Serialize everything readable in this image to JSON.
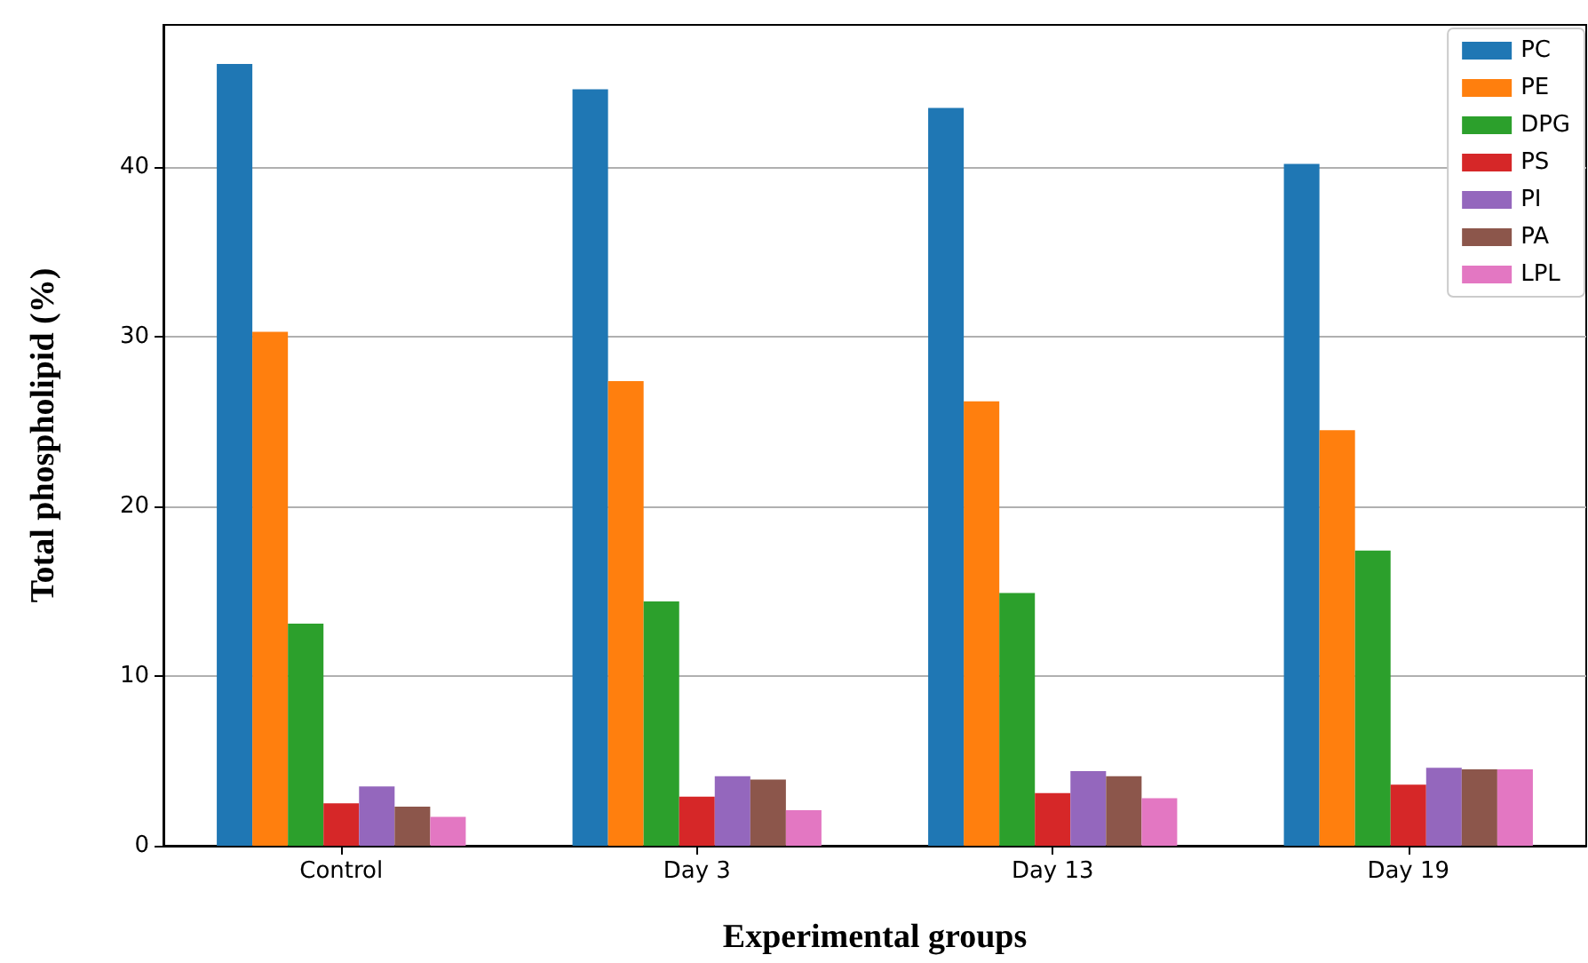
{
  "chart_data": {
    "type": "bar",
    "xlabel": "Experimental groups",
    "ylabel": "Total phospholipid (%)",
    "categories": [
      "Control",
      "Day 3",
      "Day 13",
      "Day 19"
    ],
    "series": [
      {
        "name": "PC",
        "color": "#1f77b4",
        "values": [
          46.1,
          44.6,
          43.5,
          40.2
        ]
      },
      {
        "name": "PE",
        "color": "#ff7f0e",
        "values": [
          30.3,
          27.4,
          26.2,
          24.5
        ]
      },
      {
        "name": "DPG",
        "color": "#2ca02c",
        "values": [
          13.1,
          14.4,
          14.9,
          17.4
        ]
      },
      {
        "name": "PS",
        "color": "#d62728",
        "values": [
          2.5,
          2.9,
          3.1,
          3.6
        ]
      },
      {
        "name": "PI",
        "color": "#9467bd",
        "values": [
          3.5,
          4.1,
          4.4,
          4.6
        ]
      },
      {
        "name": "PA",
        "color": "#8c564b",
        "values": [
          2.3,
          3.9,
          4.1,
          4.5
        ]
      },
      {
        "name": "LPL",
        "color": "#e377c2",
        "values": [
          1.7,
          2.1,
          2.8,
          4.5
        ]
      }
    ],
    "ylim": [
      0,
      48.4
    ],
    "yticks": [
      0,
      10,
      20,
      30,
      40
    ],
    "grid": "y",
    "legend": "top right"
  }
}
